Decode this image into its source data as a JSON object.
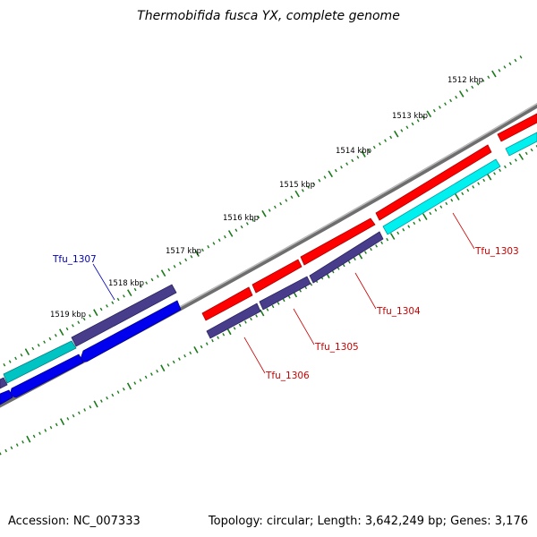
{
  "title": "Thermobifida fusca YX, complete genome",
  "footer": {
    "accession": "Accession: NC_007333",
    "summary": "Topology: circular; Length: 3,642,249 bp; Genes: 3,176"
  },
  "ticks": [
    "1512 kbp",
    "1513 kbp",
    "1514 kbp",
    "1515 kbp",
    "1516 kbp",
    "1517 kbp",
    "1518 kbp",
    "1519 kbp"
  ],
  "gene_labels": [
    {
      "text": "Tfu_1303",
      "color": "#cc0000"
    },
    {
      "text": "Tfu_1304",
      "color": "#cc0000"
    },
    {
      "text": "Tfu_1305",
      "color": "#cc0000"
    },
    {
      "text": "Tfu_1306",
      "color": "#cc0000"
    },
    {
      "text": "Tfu_1307",
      "color": "#0000bb"
    }
  ],
  "colors": {
    "forward_cds": "#ff0000",
    "forward_gene": "#00e5e5",
    "reverse_cds": "#0000ee",
    "reverse_gene": "#473d8b",
    "backbone": "#8c8c8c",
    "tick": "#1a7a1a"
  }
}
